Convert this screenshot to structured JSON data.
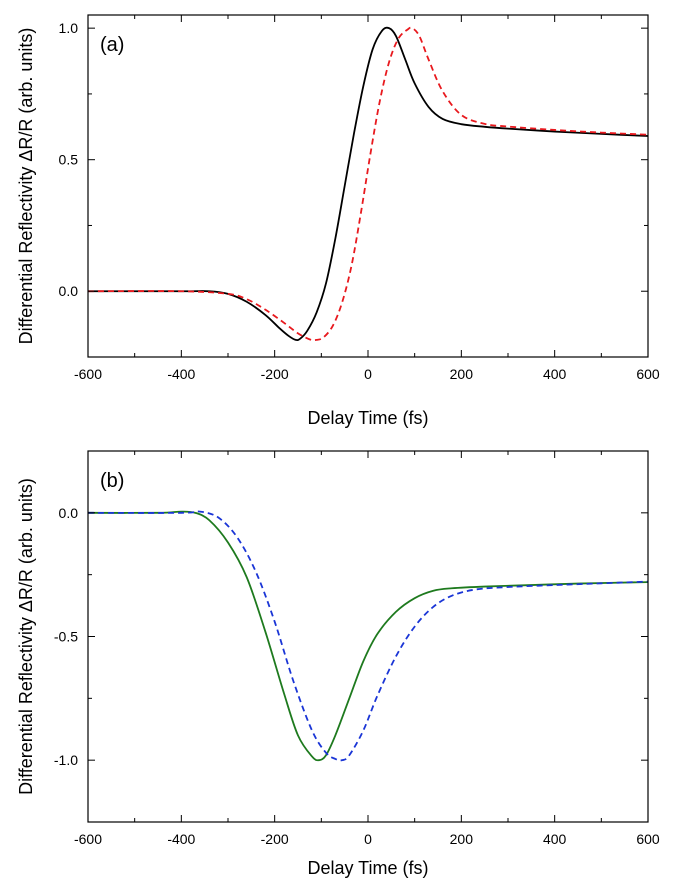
{
  "chart_data": [
    {
      "type": "line",
      "panel_label": "(a)",
      "xlabel": "Delay Time (fs)",
      "ylabel": "Differential Reflectivity ΔR/R (arb. units)",
      "xlim": [
        -600,
        600
      ],
      "ylim": [
        -0.25,
        1.05
      ],
      "xticks": [
        -600,
        -400,
        -200,
        0,
        200,
        400,
        600
      ],
      "xtick_labels": [
        "-600",
        "-400",
        "-200",
        "0",
        "200",
        "400",
        "600"
      ],
      "yticks": [
        0.0,
        0.5,
        1.0
      ],
      "ytick_labels": [
        "0.0",
        "0.5",
        "1.0"
      ],
      "grid": false,
      "series": [
        {
          "color": "#000000",
          "style": "solid",
          "x": [
            -600,
            -400,
            -340,
            -300,
            -260,
            -220,
            -190,
            -170,
            -155,
            -145,
            -130,
            -110,
            -90,
            -70,
            -50,
            -30,
            -10,
            10,
            30,
            45,
            60,
            80,
            100,
            130,
            160,
            200,
            250,
            300,
            400,
            500,
            600
          ],
          "y": [
            0,
            0,
            0,
            -0.01,
            -0.04,
            -0.09,
            -0.14,
            -0.17,
            -0.185,
            -0.18,
            -0.15,
            -0.08,
            0.03,
            0.2,
            0.4,
            0.6,
            0.78,
            0.92,
            0.99,
            1.0,
            0.97,
            0.88,
            0.79,
            0.7,
            0.655,
            0.635,
            0.625,
            0.618,
            0.607,
            0.598,
            0.59
          ]
        },
        {
          "color": "#e8191e",
          "style": "dashed",
          "x": [
            -600,
            -400,
            -300,
            -260,
            -220,
            -180,
            -150,
            -125,
            -110,
            -95,
            -75,
            -55,
            -35,
            -15,
            5,
            25,
            45,
            65,
            85,
            95,
            110,
            130,
            160,
            200,
            250,
            300,
            400,
            500,
            600
          ],
          "y": [
            0,
            0,
            -0.01,
            -0.03,
            -0.07,
            -0.12,
            -0.16,
            -0.183,
            -0.185,
            -0.175,
            -0.13,
            -0.04,
            0.1,
            0.3,
            0.52,
            0.72,
            0.87,
            0.96,
            0.995,
            1.0,
            0.97,
            0.88,
            0.76,
            0.67,
            0.636,
            0.626,
            0.613,
            0.603,
            0.595
          ]
        }
      ]
    },
    {
      "type": "line",
      "panel_label": "(b)",
      "xlabel": "Delay Time (fs)",
      "ylabel": "Differential Reflectivity ΔR/R (arb. units)",
      "xlim": [
        -600,
        600
      ],
      "ylim": [
        -1.25,
        0.25
      ],
      "xticks": [
        -600,
        -400,
        -200,
        0,
        200,
        400,
        600
      ],
      "xtick_labels": [
        "-600",
        "-400",
        "-200",
        "0",
        "200",
        "400",
        "600"
      ],
      "yticks": [
        -1.0,
        -0.5,
        0.0
      ],
      "ytick_labels": [
        "-1.0",
        "-0.5",
        "0.0"
      ],
      "grid": false,
      "series": [
        {
          "color": "#1e7a1e",
          "style": "solid",
          "x": [
            -600,
            -450,
            -400,
            -370,
            -340,
            -300,
            -260,
            -220,
            -180,
            -150,
            -120,
            -105,
            -90,
            -70,
            -40,
            -10,
            20,
            60,
            100,
            140,
            180,
            250,
            350,
            450,
            600
          ],
          "y": [
            0,
            0,
            0.005,
            0.0,
            -0.03,
            -0.12,
            -0.26,
            -0.48,
            -0.73,
            -0.9,
            -0.985,
            -1.0,
            -0.98,
            -0.9,
            -0.75,
            -0.6,
            -0.49,
            -0.4,
            -0.345,
            -0.315,
            -0.305,
            -0.298,
            -0.292,
            -0.286,
            -0.28
          ]
        },
        {
          "color": "#1a35d6",
          "style": "dashed",
          "x": [
            -600,
            -400,
            -360,
            -320,
            -280,
            -240,
            -200,
            -160,
            -120,
            -90,
            -70,
            -55,
            -40,
            -10,
            20,
            60,
            100,
            140,
            180,
            230,
            300,
            400,
            500,
            600
          ],
          "y": [
            0,
            0,
            0.005,
            -0.02,
            -0.1,
            -0.24,
            -0.44,
            -0.68,
            -0.88,
            -0.97,
            -0.995,
            -1.0,
            -0.98,
            -0.88,
            -0.74,
            -0.58,
            -0.46,
            -0.38,
            -0.335,
            -0.31,
            -0.3,
            -0.292,
            -0.285,
            -0.278
          ]
        }
      ]
    }
  ]
}
